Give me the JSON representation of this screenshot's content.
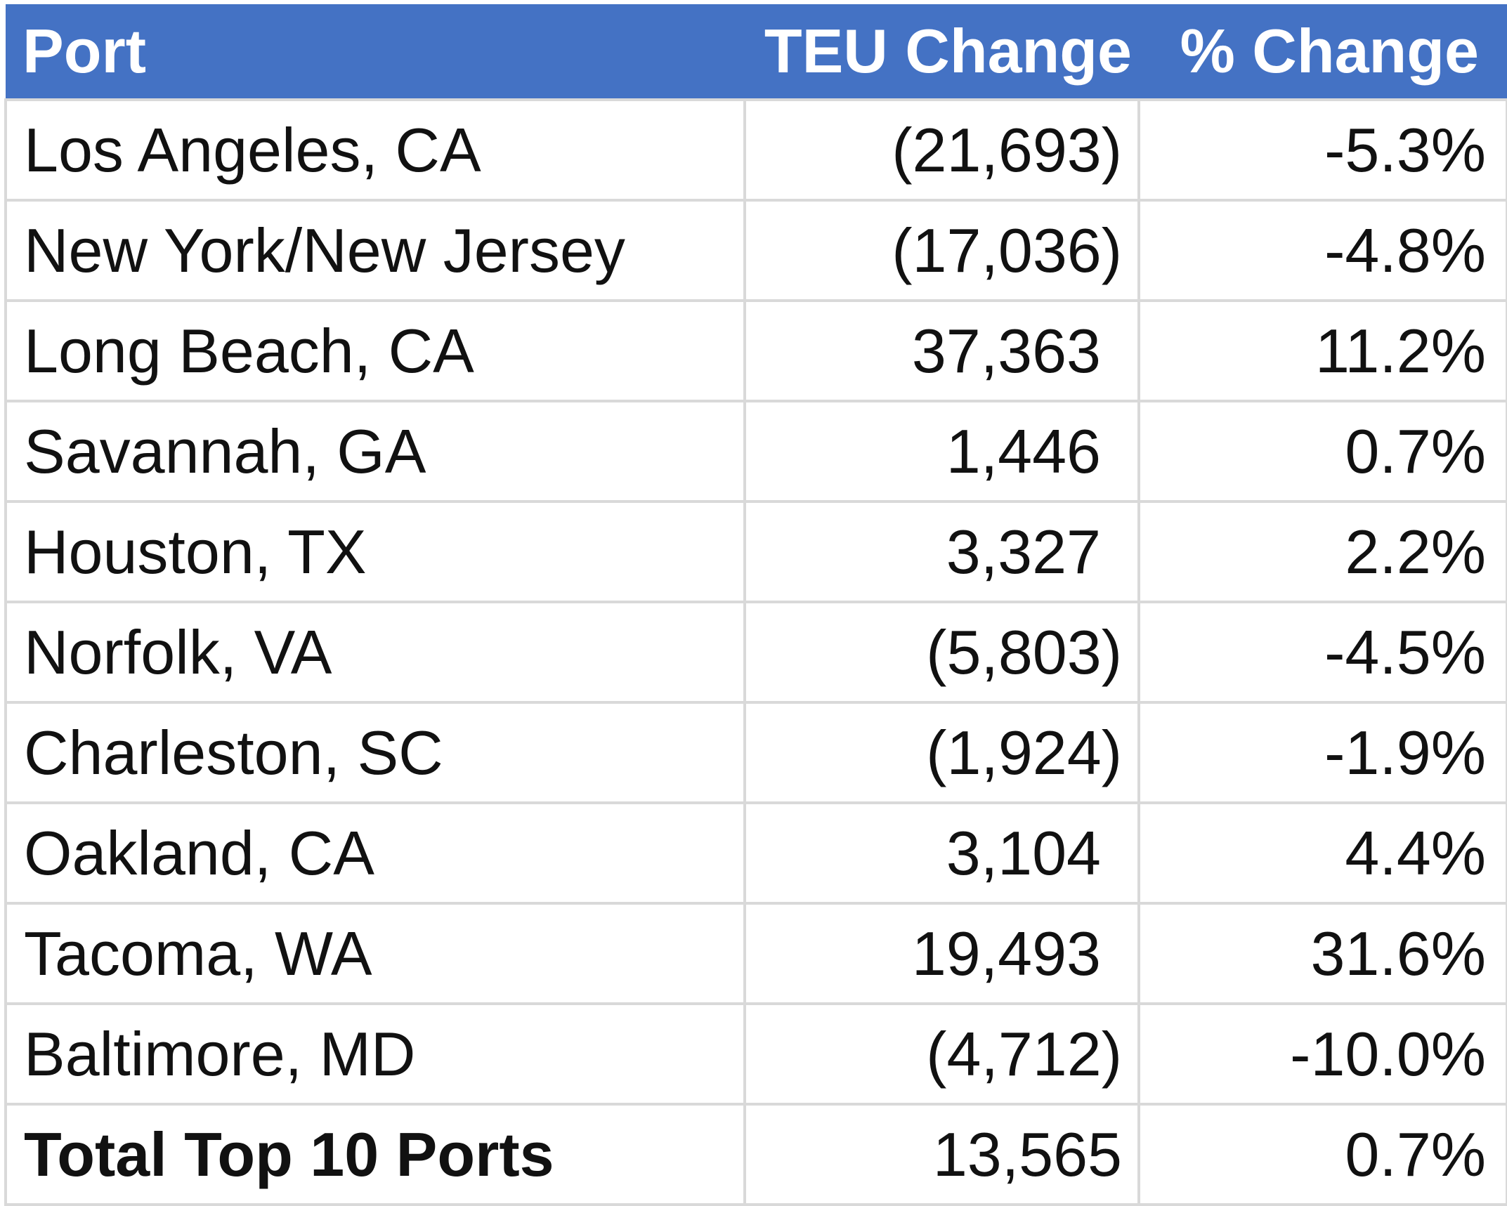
{
  "header": {
    "port": "Port",
    "teu_change": "TEU Change",
    "pct_change": "% Change"
  },
  "rows": [
    {
      "port": "Los Angeles, CA",
      "teu_change": "(21,693)",
      "pct_change": "-5.3%"
    },
    {
      "port": "New York/New Jersey",
      "teu_change": "(17,036)",
      "pct_change": "-4.8%"
    },
    {
      "port": "Long Beach, CA",
      "teu_change": "37,363",
      "pct_change": "11.2%"
    },
    {
      "port": "Savannah, GA",
      "teu_change": "1,446",
      "pct_change": "0.7%"
    },
    {
      "port": "Houston, TX",
      "teu_change": "3,327",
      "pct_change": "2.2%"
    },
    {
      "port": "Norfolk, VA",
      "teu_change": "(5,803)",
      "pct_change": "-4.5%"
    },
    {
      "port": "Charleston, SC",
      "teu_change": "(1,924)",
      "pct_change": "-1.9%"
    },
    {
      "port": "Oakland, CA",
      "teu_change": "3,104",
      "pct_change": "4.4%"
    },
    {
      "port": "Tacoma, WA",
      "teu_change": "19,493",
      "pct_change": "31.6%"
    },
    {
      "port": "Baltimore, MD",
      "teu_change": "(4,712)",
      "pct_change": "-10.0%"
    }
  ],
  "total": {
    "port": "Total Top 10 Ports",
    "teu_change": "13,565",
    "pct_change": "0.7%"
  },
  "colors": {
    "header_bg": "#4472c4",
    "header_text": "#ffffff",
    "grid": "#d9d9d9",
    "text": "#111111"
  }
}
